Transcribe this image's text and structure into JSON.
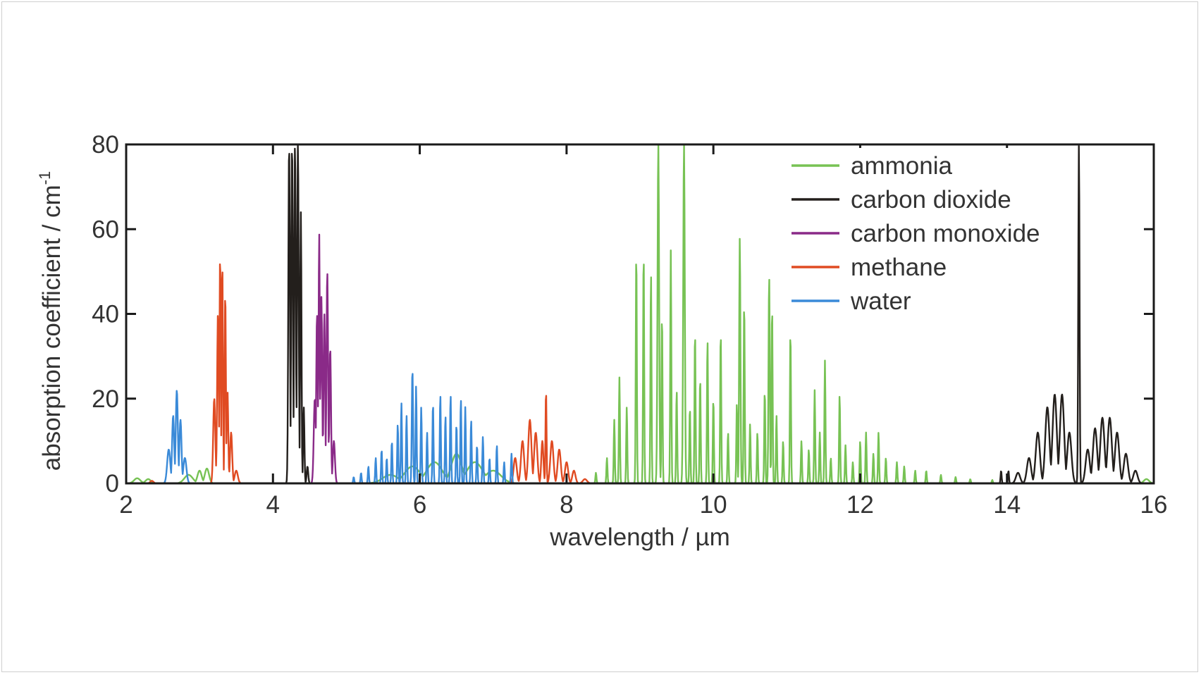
{
  "chart_data": {
    "type": "line",
    "xlabel": "wavelength / µm",
    "ylabel": "absorption coefficient / cm",
    "ylabel_superscript": "-1",
    "xlim": [
      2,
      16
    ],
    "ylim": [
      0,
      80
    ],
    "x_ticks": [
      2,
      4,
      6,
      8,
      10,
      12,
      14,
      16
    ],
    "y_ticks": [
      0,
      20,
      40,
      60,
      80
    ],
    "legend_position": "top-right",
    "series": [
      {
        "name": "ammonia",
        "color": "#77c254",
        "peaks": [
          {
            "x": 2.15,
            "y": 1.2,
            "w": 0.06
          },
          {
            "x": 2.3,
            "y": 1.0,
            "w": 0.05
          },
          {
            "x": 2.85,
            "y": 2.0,
            "w": 0.08
          },
          {
            "x": 3.0,
            "y": 3.0,
            "w": 0.04
          },
          {
            "x": 3.1,
            "y": 3.5,
            "w": 0.04
          },
          {
            "x": 5.6,
            "y": 2.0,
            "w": 0.15
          },
          {
            "x": 5.9,
            "y": 4.0,
            "w": 0.15
          },
          {
            "x": 6.2,
            "y": 5.0,
            "w": 0.15
          },
          {
            "x": 6.5,
            "y": 7.0,
            "w": 0.1
          },
          {
            "x": 6.75,
            "y": 5.0,
            "w": 0.15
          },
          {
            "x": 7.0,
            "y": 3.0,
            "w": 0.15
          },
          {
            "x": 8.4,
            "y": 2.5,
            "w": 0.01
          },
          {
            "x": 8.55,
            "y": 6.0,
            "w": 0.01
          },
          {
            "x": 8.65,
            "y": 15.0,
            "w": 0.01
          },
          {
            "x": 8.72,
            "y": 25.0,
            "w": 0.01
          },
          {
            "x": 8.82,
            "y": 18.0,
            "w": 0.01
          },
          {
            "x": 8.95,
            "y": 55.0,
            "w": 0.01
          },
          {
            "x": 9.05,
            "y": 55.0,
            "w": 0.01
          },
          {
            "x": 9.15,
            "y": 50.0,
            "w": 0.01
          },
          {
            "x": 9.25,
            "y": 80.0,
            "w": 0.015
          },
          {
            "x": 9.3,
            "y": 40.0,
            "w": 0.01
          },
          {
            "x": 9.42,
            "y": 55.0,
            "w": 0.01
          },
          {
            "x": 9.5,
            "y": 22.0,
            "w": 0.01
          },
          {
            "x": 9.6,
            "y": 80.0,
            "w": 0.015
          },
          {
            "x": 9.68,
            "y": 18.0,
            "w": 0.01
          },
          {
            "x": 9.75,
            "y": 36.0,
            "w": 0.01
          },
          {
            "x": 9.82,
            "y": 25.0,
            "w": 0.01
          },
          {
            "x": 9.92,
            "y": 34.0,
            "w": 0.01
          },
          {
            "x": 10.0,
            "y": 20.0,
            "w": 0.01
          },
          {
            "x": 10.1,
            "y": 36.0,
            "w": 0.01
          },
          {
            "x": 10.2,
            "y": 12.0,
            "w": 0.01
          },
          {
            "x": 10.32,
            "y": 19.0,
            "w": 0.01
          },
          {
            "x": 10.36,
            "y": 58.0,
            "w": 0.012
          },
          {
            "x": 10.42,
            "y": 43.0,
            "w": 0.01
          },
          {
            "x": 10.5,
            "y": 14.0,
            "w": 0.01
          },
          {
            "x": 10.6,
            "y": 12.0,
            "w": 0.01
          },
          {
            "x": 10.7,
            "y": 22.0,
            "w": 0.01
          },
          {
            "x": 10.76,
            "y": 49.0,
            "w": 0.012
          },
          {
            "x": 10.8,
            "y": 42.0,
            "w": 0.01
          },
          {
            "x": 10.86,
            "y": 16.0,
            "w": 0.01
          },
          {
            "x": 10.95,
            "y": 10.0,
            "w": 0.01
          },
          {
            "x": 11.05,
            "y": 36.0,
            "w": 0.01
          },
          {
            "x": 11.2,
            "y": 10.0,
            "w": 0.01
          },
          {
            "x": 11.3,
            "y": 8.0,
            "w": 0.01
          },
          {
            "x": 11.38,
            "y": 22.0,
            "w": 0.01
          },
          {
            "x": 11.45,
            "y": 12.0,
            "w": 0.01
          },
          {
            "x": 11.52,
            "y": 29.0,
            "w": 0.01
          },
          {
            "x": 11.6,
            "y": 6.0,
            "w": 0.01
          },
          {
            "x": 11.72,
            "y": 21.0,
            "w": 0.01
          },
          {
            "x": 11.8,
            "y": 9.0,
            "w": 0.01
          },
          {
            "x": 11.9,
            "y": 5.0,
            "w": 0.01
          },
          {
            "x": 12.0,
            "y": 10.0,
            "w": 0.01
          },
          {
            "x": 12.08,
            "y": 12.0,
            "w": 0.01
          },
          {
            "x": 12.18,
            "y": 7.0,
            "w": 0.01
          },
          {
            "x": 12.25,
            "y": 12.0,
            "w": 0.01
          },
          {
            "x": 12.35,
            "y": 6.0,
            "w": 0.01
          },
          {
            "x": 12.5,
            "y": 5.0,
            "w": 0.01
          },
          {
            "x": 12.6,
            "y": 4.0,
            "w": 0.01
          },
          {
            "x": 12.75,
            "y": 3.0,
            "w": 0.01
          },
          {
            "x": 12.9,
            "y": 3.0,
            "w": 0.01
          },
          {
            "x": 13.1,
            "y": 2.0,
            "w": 0.01
          },
          {
            "x": 13.3,
            "y": 1.5,
            "w": 0.01
          },
          {
            "x": 13.5,
            "y": 1.0,
            "w": 0.01
          },
          {
            "x": 13.8,
            "y": 0.8,
            "w": 0.01
          },
          {
            "x": 15.9,
            "y": 1.0,
            "w": 0.05
          }
        ]
      },
      {
        "name": "carbon dioxide",
        "color": "#231f1c",
        "peaks": [
          {
            "x": 4.22,
            "y": 80.0,
            "w": 0.015
          },
          {
            "x": 4.26,
            "y": 80.0,
            "w": 0.015
          },
          {
            "x": 4.3,
            "y": 80.0,
            "w": 0.015
          },
          {
            "x": 4.34,
            "y": 80.0,
            "w": 0.015
          },
          {
            "x": 4.38,
            "y": 64.0,
            "w": 0.012
          },
          {
            "x": 4.42,
            "y": 18.0,
            "w": 0.012
          },
          {
            "x": 4.47,
            "y": 4.0,
            "w": 0.015
          },
          {
            "x": 13.92,
            "y": 3.0,
            "w": 0.01
          },
          {
            "x": 14.02,
            "y": 3.0,
            "w": 0.01
          },
          {
            "x": 14.15,
            "y": 2.5,
            "w": 0.04
          },
          {
            "x": 14.3,
            "y": 6.0,
            "w": 0.04
          },
          {
            "x": 14.42,
            "y": 12.0,
            "w": 0.04
          },
          {
            "x": 14.55,
            "y": 18.0,
            "w": 0.04
          },
          {
            "x": 14.65,
            "y": 21.0,
            "w": 0.04
          },
          {
            "x": 14.75,
            "y": 21.0,
            "w": 0.04
          },
          {
            "x": 14.85,
            "y": 12.0,
            "w": 0.04
          },
          {
            "x": 14.98,
            "y": 80.0,
            "w": 0.012
          },
          {
            "x": 15.1,
            "y": 8.0,
            "w": 0.04
          },
          {
            "x": 15.2,
            "y": 13.0,
            "w": 0.04
          },
          {
            "x": 15.3,
            "y": 15.5,
            "w": 0.04
          },
          {
            "x": 15.4,
            "y": 15.5,
            "w": 0.04
          },
          {
            "x": 15.5,
            "y": 12.0,
            "w": 0.04
          },
          {
            "x": 15.62,
            "y": 7.0,
            "w": 0.04
          },
          {
            "x": 15.75,
            "y": 3.0,
            "w": 0.04
          }
        ]
      },
      {
        "name": "carbon monoxide",
        "color": "#8a2a88",
        "peaks": [
          {
            "x": 4.57,
            "y": 20.0,
            "w": 0.02
          },
          {
            "x": 4.6,
            "y": 40.0,
            "w": 0.015
          },
          {
            "x": 4.63,
            "y": 59.0,
            "w": 0.012
          },
          {
            "x": 4.66,
            "y": 44.0,
            "w": 0.015
          },
          {
            "x": 4.7,
            "y": 40.0,
            "w": 0.015
          },
          {
            "x": 4.74,
            "y": 50.0,
            "w": 0.015
          },
          {
            "x": 4.78,
            "y": 32.0,
            "w": 0.015
          },
          {
            "x": 4.83,
            "y": 10.0,
            "w": 0.02
          }
        ]
      },
      {
        "name": "methane",
        "color": "#e04b22",
        "peaks": [
          {
            "x": 2.35,
            "y": 0.6,
            "w": 0.03
          },
          {
            "x": 3.2,
            "y": 20.0,
            "w": 0.02
          },
          {
            "x": 3.25,
            "y": 40.0,
            "w": 0.015
          },
          {
            "x": 3.28,
            "y": 54.0,
            "w": 0.012
          },
          {
            "x": 3.31,
            "y": 52.0,
            "w": 0.012
          },
          {
            "x": 3.35,
            "y": 45.0,
            "w": 0.012
          },
          {
            "x": 3.38,
            "y": 22.0,
            "w": 0.015
          },
          {
            "x": 3.43,
            "y": 12.0,
            "w": 0.02
          },
          {
            "x": 3.5,
            "y": 3.0,
            "w": 0.03
          },
          {
            "x": 7.3,
            "y": 6.0,
            "w": 0.03
          },
          {
            "x": 7.4,
            "y": 10.0,
            "w": 0.03
          },
          {
            "x": 7.5,
            "y": 15.0,
            "w": 0.03
          },
          {
            "x": 7.58,
            "y": 12.0,
            "w": 0.03
          },
          {
            "x": 7.67,
            "y": 10.0,
            "w": 0.02
          },
          {
            "x": 7.72,
            "y": 22.0,
            "w": 0.01
          },
          {
            "x": 7.8,
            "y": 10.0,
            "w": 0.03
          },
          {
            "x": 7.9,
            "y": 8.0,
            "w": 0.03
          },
          {
            "x": 8.0,
            "y": 5.0,
            "w": 0.03
          },
          {
            "x": 8.1,
            "y": 3.0,
            "w": 0.03
          },
          {
            "x": 8.25,
            "y": 1.0,
            "w": 0.04
          }
        ]
      },
      {
        "name": "water",
        "color": "#3a8ad8",
        "peaks": [
          {
            "x": 2.58,
            "y": 8.0,
            "w": 0.03
          },
          {
            "x": 2.64,
            "y": 16.0,
            "w": 0.02
          },
          {
            "x": 2.69,
            "y": 22.0,
            "w": 0.02
          },
          {
            "x": 2.74,
            "y": 15.0,
            "w": 0.02
          },
          {
            "x": 2.8,
            "y": 6.0,
            "w": 0.03
          },
          {
            "x": 5.1,
            "y": 1.5,
            "w": 0.01
          },
          {
            "x": 5.2,
            "y": 2.5,
            "w": 0.01
          },
          {
            "x": 5.3,
            "y": 4.0,
            "w": 0.01
          },
          {
            "x": 5.4,
            "y": 6.0,
            "w": 0.01
          },
          {
            "x": 5.48,
            "y": 8.0,
            "w": 0.01
          },
          {
            "x": 5.55,
            "y": 6.0,
            "w": 0.01
          },
          {
            "x": 5.62,
            "y": 10.0,
            "w": 0.01
          },
          {
            "x": 5.7,
            "y": 14.0,
            "w": 0.01
          },
          {
            "x": 5.75,
            "y": 19.0,
            "w": 0.01
          },
          {
            "x": 5.82,
            "y": 16.0,
            "w": 0.01
          },
          {
            "x": 5.9,
            "y": 27.0,
            "w": 0.012
          },
          {
            "x": 5.95,
            "y": 23.0,
            "w": 0.01
          },
          {
            "x": 6.02,
            "y": 18.0,
            "w": 0.01
          },
          {
            "x": 6.1,
            "y": 12.0,
            "w": 0.01
          },
          {
            "x": 6.18,
            "y": 19.0,
            "w": 0.01
          },
          {
            "x": 6.28,
            "y": 21.0,
            "w": 0.01
          },
          {
            "x": 6.35,
            "y": 16.0,
            "w": 0.01
          },
          {
            "x": 6.42,
            "y": 21.0,
            "w": 0.01
          },
          {
            "x": 6.5,
            "y": 14.0,
            "w": 0.01
          },
          {
            "x": 6.56,
            "y": 20.0,
            "w": 0.01
          },
          {
            "x": 6.62,
            "y": 18.0,
            "w": 0.01
          },
          {
            "x": 6.7,
            "y": 15.0,
            "w": 0.01
          },
          {
            "x": 6.78,
            "y": 9.0,
            "w": 0.01
          },
          {
            "x": 6.86,
            "y": 11.0,
            "w": 0.01
          },
          {
            "x": 6.95,
            "y": 6.0,
            "w": 0.01
          },
          {
            "x": 7.05,
            "y": 9.0,
            "w": 0.01
          },
          {
            "x": 7.15,
            "y": 5.0,
            "w": 0.01
          },
          {
            "x": 7.25,
            "y": 7.0,
            "w": 0.01
          }
        ]
      }
    ]
  }
}
